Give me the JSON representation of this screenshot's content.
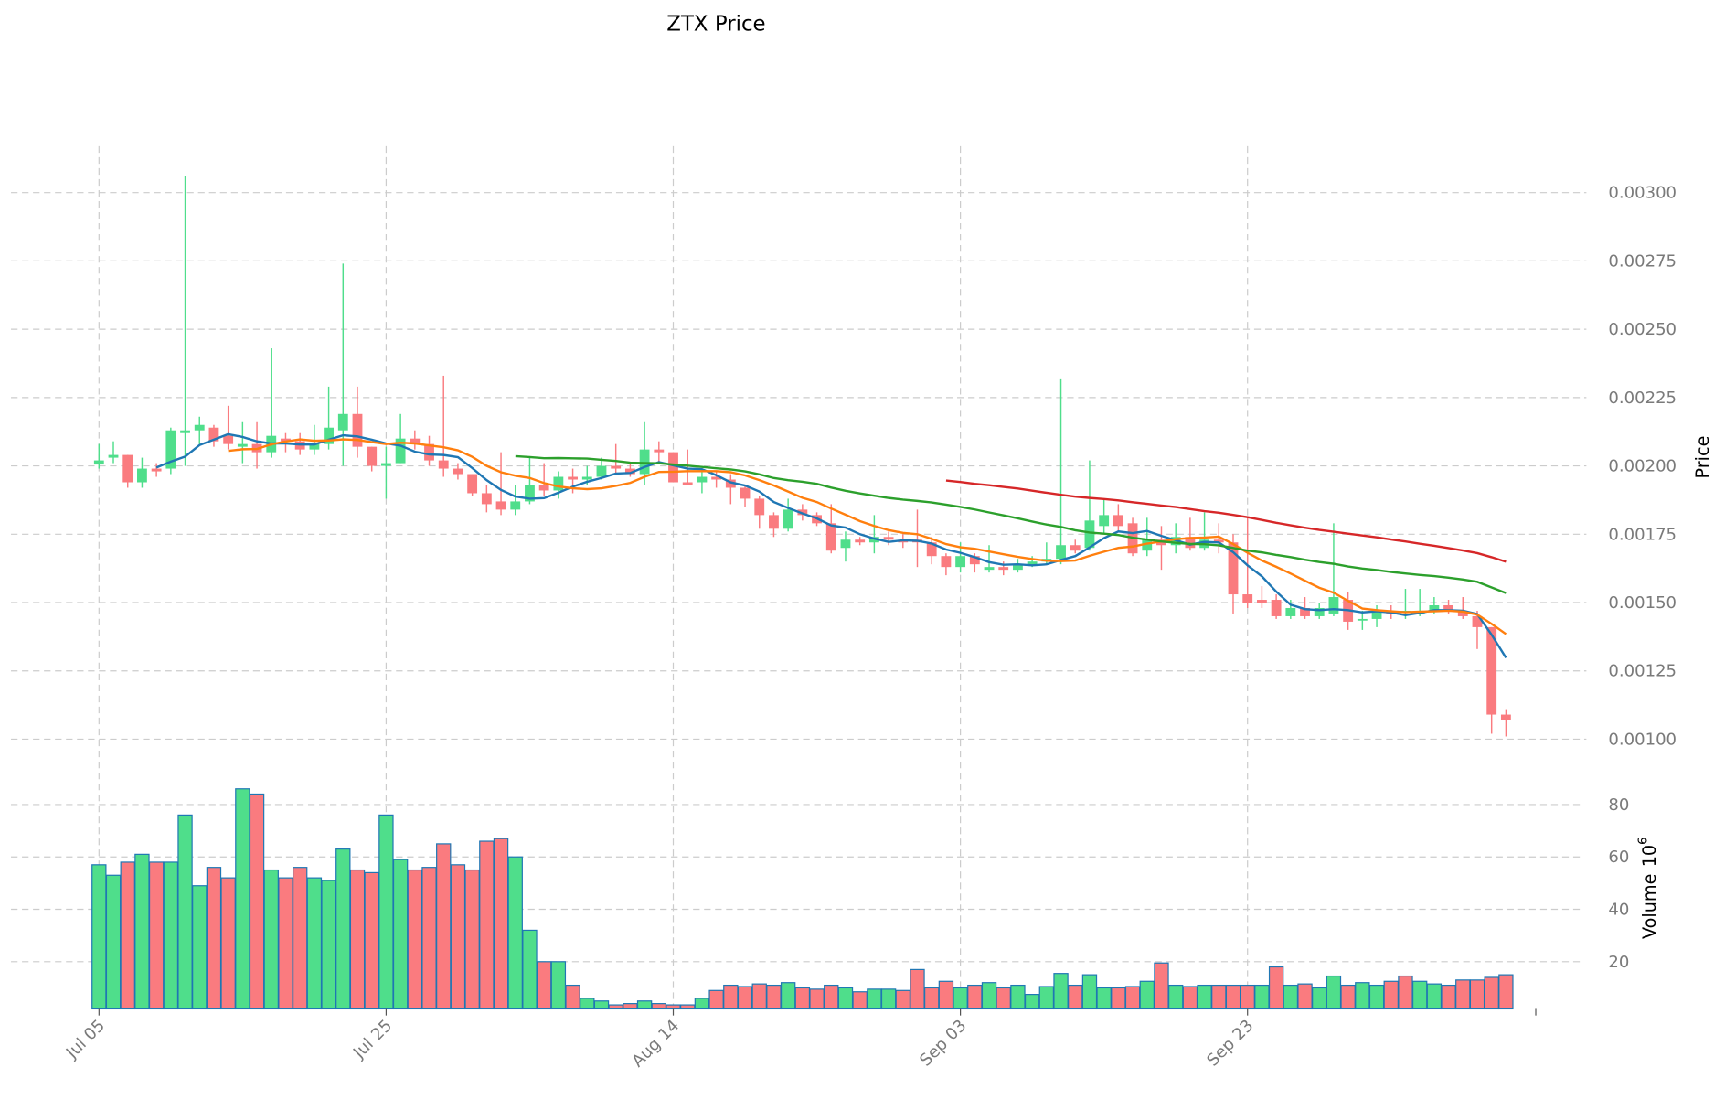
{
  "chart_data": {
    "type": "candlestick",
    "title": "ZTX Price",
    "ylabel": "Price",
    "volume_label": "Volume",
    "volume_exponent_label": "10",
    "volume_exponent": "6",
    "x_tick_labels": [
      "Jul 05",
      "Jul 25",
      "Aug 14",
      "Sep 03",
      "Sep 23"
    ],
    "x_tick_day_index": [
      0,
      20,
      40,
      60,
      80
    ],
    "price_ticks": [
      "0.00100",
      "0.00125",
      "0.00150",
      "0.00175",
      "0.00200",
      "0.00225",
      "0.00250",
      "0.00275",
      "0.00300"
    ],
    "price_ylim": [
      0.00093,
      0.00317
    ],
    "volume_ticks": [
      "20",
      "40",
      "60",
      "80"
    ],
    "volume_ylim": [
      0,
      90
    ],
    "grid": true,
    "colors": {
      "up": "#4fde8b",
      "down": "#fa7b7f",
      "volume_edge": "#1f77b4",
      "grid": "#cccccc"
    },
    "moving_averages": [
      {
        "period": 5,
        "color": "#1f77b4"
      },
      {
        "period": 10,
        "color": "#ff7f0e"
      },
      {
        "period": 30,
        "color": "#2ca02c"
      },
      {
        "period": 60,
        "color": "#d62728"
      }
    ],
    "open": [
      0.002005,
      0.00203,
      0.00204,
      0.00194,
      0.00199,
      0.00199,
      0.00212,
      0.00213,
      0.00214,
      0.00211,
      0.00207,
      0.00208,
      0.00205,
      0.0021,
      0.00209,
      0.00206,
      0.00208,
      0.00213,
      0.00219,
      0.00207,
      0.002,
      0.00201,
      0.0021,
      0.00208,
      0.00202,
      0.00199,
      0.00197,
      0.0019,
      0.00187,
      0.00184,
      0.00187,
      0.00193,
      0.00191,
      0.00196,
      0.00195,
      0.00196,
      0.002,
      0.00199,
      0.00197,
      0.00206,
      0.00205,
      0.00194,
      0.00194,
      0.00196,
      0.00195,
      0.00192,
      0.00188,
      0.00182,
      0.00177,
      0.00184,
      0.00182,
      0.00179,
      0.0017,
      0.00173,
      0.00172,
      0.00174,
      0.00173,
      0.00173,
      0.00172,
      0.00167,
      0.00163,
      0.00167,
      0.00162,
      0.00163,
      0.00162,
      0.00164,
      0.00165,
      0.00166,
      0.00171,
      0.0017,
      0.00178,
      0.00182,
      0.00179,
      0.00169,
      0.00173,
      0.00171,
      0.00174,
      0.0017,
      0.00173,
      0.00172,
      0.00153,
      0.00151,
      0.00151,
      0.00145,
      0.00148,
      0.00145,
      0.00146,
      0.00151,
      0.00144,
      0.00144,
      0.00147,
      0.00147,
      0.00146,
      0.00147,
      0.00149,
      0.00147,
      0.00145,
      0.00141,
      0.00109
    ],
    "high": [
      0.00208,
      0.00209,
      0.00204,
      0.00203,
      0.00201,
      0.00214,
      0.00306,
      0.00218,
      0.00215,
      0.00222,
      0.00216,
      0.00216,
      0.00243,
      0.00212,
      0.00212,
      0.00215,
      0.00229,
      0.00274,
      0.00229,
      0.00207,
      0.00207,
      0.00219,
      0.00213,
      0.00211,
      0.00233,
      0.00201,
      0.00197,
      0.00193,
      0.00205,
      0.00193,
      0.00203,
      0.00201,
      0.00198,
      0.00199,
      0.002,
      0.00203,
      0.00208,
      0.00201,
      0.00216,
      0.00209,
      0.00205,
      0.00206,
      0.00199,
      0.00198,
      0.00197,
      0.00193,
      0.00189,
      0.00183,
      0.00188,
      0.00186,
      0.00183,
      0.00186,
      0.00176,
      0.00174,
      0.00182,
      0.00176,
      0.00175,
      0.00184,
      0.00174,
      0.00168,
      0.00172,
      0.00168,
      0.00171,
      0.00165,
      0.00166,
      0.00167,
      0.00172,
      0.00232,
      0.00173,
      0.00202,
      0.00188,
      0.00186,
      0.00181,
      0.00181,
      0.00178,
      0.00179,
      0.00181,
      0.00183,
      0.00179,
      0.00175,
      0.00181,
      0.00156,
      0.00153,
      0.00151,
      0.00152,
      0.0015,
      0.00179,
      0.00154,
      0.00147,
      0.00149,
      0.00149,
      0.00155,
      0.00155,
      0.00152,
      0.00151,
      0.00152,
      0.00147,
      0.00141,
      0.00111
    ],
    "low": [
      0.00199,
      0.00201,
      0.00192,
      0.00192,
      0.00196,
      0.00197,
      0.002,
      0.00208,
      0.00207,
      0.00206,
      0.00201,
      0.00199,
      0.00203,
      0.00205,
      0.00204,
      0.00204,
      0.00206,
      0.002,
      0.00203,
      0.00198,
      0.00188,
      0.00201,
      0.00206,
      0.002,
      0.00196,
      0.00195,
      0.00189,
      0.00183,
      0.00182,
      0.00182,
      0.00186,
      0.00189,
      0.00188,
      0.0019,
      0.00193,
      0.00195,
      0.00197,
      0.00196,
      0.00193,
      0.00201,
      0.00194,
      0.00193,
      0.0019,
      0.00192,
      0.00186,
      0.00185,
      0.00177,
      0.00174,
      0.00176,
      0.0018,
      0.00178,
      0.00168,
      0.00165,
      0.00171,
      0.00168,
      0.00171,
      0.0017,
      0.00163,
      0.00164,
      0.0016,
      0.00161,
      0.00161,
      0.00161,
      0.0016,
      0.00161,
      0.00163,
      0.00164,
      0.00164,
      0.00168,
      0.00169,
      0.00175,
      0.00176,
      0.00167,
      0.00167,
      0.00162,
      0.00168,
      0.00169,
      0.00169,
      0.00168,
      0.00146,
      0.00148,
      0.00148,
      0.00144,
      0.00144,
      0.00144,
      0.00144,
      0.00145,
      0.0014,
      0.0014,
      0.00141,
      0.00144,
      0.00144,
      0.00145,
      0.00146,
      0.00146,
      0.00144,
      0.00133,
      0.00102,
      0.00101
    ],
    "close": [
      0.00202,
      0.00204,
      0.00194,
      0.00199,
      0.00198,
      0.00213,
      0.00213,
      0.00215,
      0.00209,
      0.00208,
      0.00208,
      0.00205,
      0.00211,
      0.00209,
      0.00206,
      0.00208,
      0.00214,
      0.00219,
      0.00207,
      0.002,
      0.00201,
      0.0021,
      0.00208,
      0.00202,
      0.00199,
      0.00197,
      0.0019,
      0.00186,
      0.00184,
      0.00187,
      0.00193,
      0.00191,
      0.00196,
      0.00195,
      0.00196,
      0.002,
      0.00199,
      0.00197,
      0.00206,
      0.00205,
      0.00194,
      0.00193,
      0.00196,
      0.00195,
      0.00192,
      0.00188,
      0.00182,
      0.00177,
      0.00184,
      0.00182,
      0.00179,
      0.00169,
      0.00173,
      0.00172,
      0.00174,
      0.00173,
      0.00172,
      0.00172,
      0.00167,
      0.00163,
      0.00167,
      0.00164,
      0.00163,
      0.00162,
      0.00164,
      0.00165,
      0.00166,
      0.00171,
      0.00169,
      0.0018,
      0.00182,
      0.00178,
      0.00168,
      0.00173,
      0.00171,
      0.00174,
      0.0017,
      0.00173,
      0.00172,
      0.00153,
      0.0015,
      0.0015,
      0.00145,
      0.00148,
      0.00145,
      0.00148,
      0.00152,
      0.00143,
      0.00144,
      0.00147,
      0.00146,
      0.00147,
      0.00147,
      0.00149,
      0.00147,
      0.00145,
      0.00141,
      0.00109,
      0.00107
    ],
    "volume": [
      57,
      53,
      58,
      61,
      58,
      58,
      76,
      49,
      56,
      52,
      86,
      84,
      55,
      52,
      56,
      52,
      51,
      63,
      55,
      54,
      76,
      59,
      55,
      56,
      65,
      57,
      55,
      66,
      67,
      60,
      32,
      20,
      20,
      11,
      6,
      5,
      3.5,
      4,
      5,
      4,
      3.5,
      3.5,
      6,
      9,
      11,
      10.5,
      11.5,
      11,
      12,
      10,
      9.5,
      11,
      10,
      8.5,
      9.5,
      9.5,
      9,
      17,
      10,
      12.5,
      10,
      11,
      12,
      10,
      11,
      7.5,
      10.5,
      15.5,
      11,
      15,
      10,
      10,
      10.5,
      12.5,
      19.5,
      11,
      10.5,
      11,
      11,
      11,
      11,
      11,
      18,
      11,
      11.5,
      10,
      14.5,
      11,
      12,
      11,
      12.5,
      14.5,
      12.5,
      11.5,
      11,
      13,
      13,
      14,
      15
    ],
    "volume_up": [
      1,
      1,
      0,
      1,
      0,
      1,
      1,
      1,
      0,
      0,
      1,
      0,
      1,
      0,
      0,
      1,
      1,
      1,
      0,
      0,
      1,
      1,
      0,
      0,
      0,
      0,
      0,
      0,
      0,
      1,
      1,
      0,
      1,
      0,
      1,
      1,
      0,
      0,
      1,
      0,
      0,
      0,
      1,
      0,
      0,
      0,
      0,
      0,
      1,
      0,
      0,
      0,
      1,
      0,
      1,
      1,
      0,
      0,
      0,
      0,
      1,
      0,
      1,
      0,
      1,
      1,
      1,
      1,
      0,
      1,
      1,
      0,
      0,
      1,
      0,
      1,
      0,
      1,
      0,
      0,
      0,
      1,
      0,
      1,
      0,
      1,
      1,
      0,
      1,
      1,
      0,
      0,
      1,
      1,
      0,
      0,
      0,
      0,
      0
    ]
  }
}
